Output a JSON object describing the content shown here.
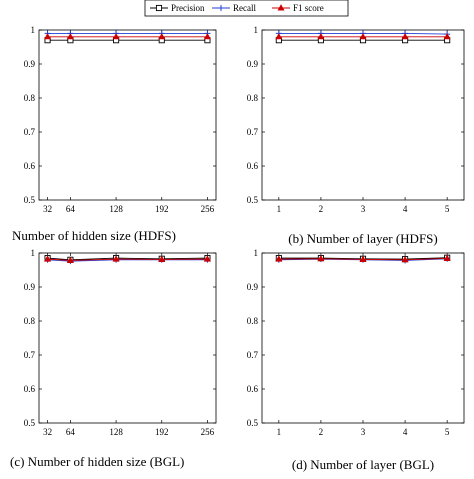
{
  "legend": {
    "entries": [
      {
        "name": "Precision",
        "color": "#000000",
        "marker": "square"
      },
      {
        "name": "Recall",
        "color": "#1f3fd6",
        "marker": "plus"
      },
      {
        "name": "F1 score",
        "color": "#cc0000",
        "marker": "triangle"
      }
    ]
  },
  "chart_data": [
    {
      "type": "line",
      "caption": "Number of hidden size (HDFS)",
      "x": [
        32,
        64,
        128,
        192,
        256
      ],
      "x_tick_labels": [
        "32",
        "64",
        "128",
        "192",
        "256"
      ],
      "xlim": [
        20,
        268
      ],
      "ylim": [
        0.5,
        1.0
      ],
      "y_tick_labels": [
        "0.5",
        "0.6",
        "0.7",
        "0.8",
        "0.9",
        "1"
      ],
      "series": [
        {
          "name": "Precision",
          "values": [
            0.97,
            0.97,
            0.97,
            0.97,
            0.97
          ]
        },
        {
          "name": "Recall",
          "values": [
            0.99,
            0.99,
            0.99,
            0.99,
            0.99
          ]
        },
        {
          "name": "F1 score",
          "values": [
            0.98,
            0.98,
            0.98,
            0.98,
            0.98
          ]
        }
      ],
      "grid": false
    },
    {
      "type": "line",
      "caption": "(b) Number of layer (HDFS)",
      "x": [
        1,
        2,
        3,
        4,
        5
      ],
      "x_tick_labels": [
        "1",
        "2",
        "3",
        "4",
        "5"
      ],
      "xlim": [
        0.6,
        5.4
      ],
      "ylim": [
        0.5,
        1.0
      ],
      "y_tick_labels": [
        "0.5",
        "0.6",
        "0.7",
        "0.8",
        "0.9",
        "1"
      ],
      "series": [
        {
          "name": "Precision",
          "values": [
            0.97,
            0.97,
            0.97,
            0.97,
            0.97
          ]
        },
        {
          "name": "Recall",
          "values": [
            0.99,
            0.99,
            0.99,
            0.99,
            0.988
          ]
        },
        {
          "name": "F1 score",
          "values": [
            0.98,
            0.98,
            0.98,
            0.98,
            0.98
          ]
        }
      ],
      "grid": false
    },
    {
      "type": "line",
      "caption": "(c) Number of hidden size (BGL)",
      "x": [
        32,
        64,
        128,
        192,
        256
      ],
      "x_tick_labels": [
        "32",
        "64",
        "128",
        "192",
        "256"
      ],
      "xlim": [
        20,
        268
      ],
      "ylim": [
        0.5,
        1.0
      ],
      "y_tick_labels": [
        "0.5",
        "0.6",
        "0.7",
        "0.8",
        "0.9",
        "1"
      ],
      "series": [
        {
          "name": "Precision",
          "values": [
            0.985,
            0.98,
            0.985,
            0.983,
            0.985
          ]
        },
        {
          "name": "Recall",
          "values": [
            0.98,
            0.976,
            0.98,
            0.98,
            0.98
          ]
        },
        {
          "name": "F1 score",
          "values": [
            0.982,
            0.978,
            0.982,
            0.981,
            0.982
          ]
        }
      ],
      "grid": false
    },
    {
      "type": "line",
      "caption": "(d) Number of layer (BGL)",
      "x": [
        1,
        2,
        3,
        4,
        5
      ],
      "x_tick_labels": [
        "1",
        "2",
        "3",
        "4",
        "5"
      ],
      "xlim": [
        0.6,
        5.4
      ],
      "ylim": [
        0.5,
        1.0
      ],
      "y_tick_labels": [
        "0.5",
        "0.6",
        "0.7",
        "0.8",
        "0.9",
        "1"
      ],
      "series": [
        {
          "name": "Precision",
          "values": [
            0.985,
            0.985,
            0.983,
            0.982,
            0.986
          ]
        },
        {
          "name": "Recall",
          "values": [
            0.98,
            0.982,
            0.98,
            0.978,
            0.983
          ]
        },
        {
          "name": "F1 score",
          "values": [
            0.982,
            0.983,
            0.981,
            0.98,
            0.984
          ]
        }
      ],
      "grid": false
    }
  ]
}
